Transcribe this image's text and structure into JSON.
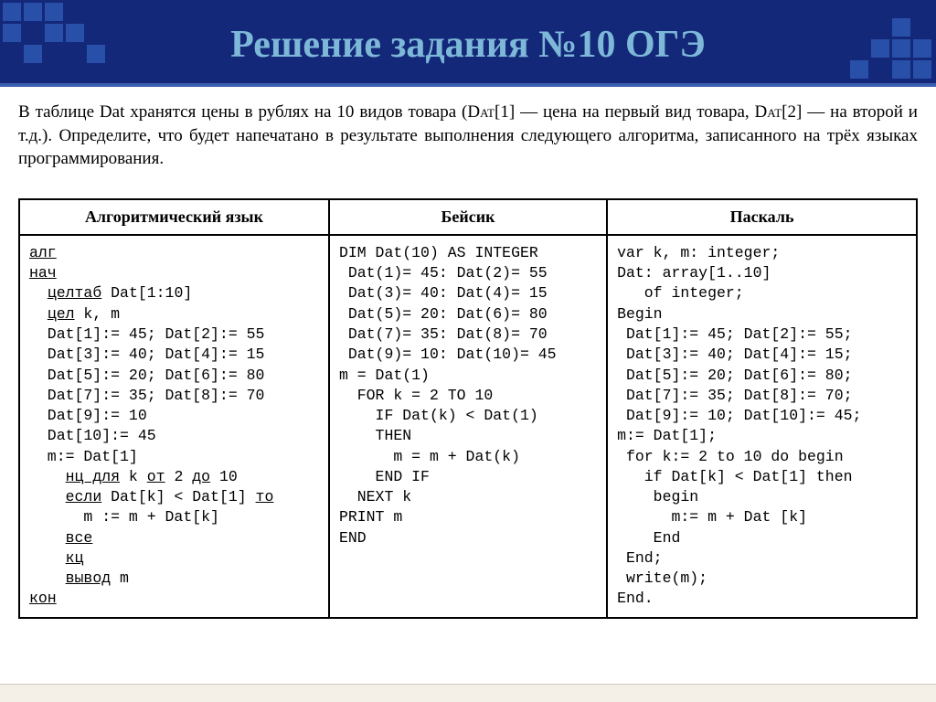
{
  "header": {
    "title": "Решение задания №10 ОГЭ",
    "bg_color": "#14287a",
    "title_color": "#7db8d8",
    "title_fontsize": 42,
    "square_color": "#2850a8",
    "border_color": "#3a5fb0"
  },
  "intro": {
    "text": "В таблице Dat хранятся цены в рублях на 10 видов товара (Dat[1] — цена на первый вид товара, Dat[2] — на второй и т.д.). Определите, что будет напечатано в результате выполнения следующего алгоритма, записанного на трёх языках программирования.",
    "fontsize": 19
  },
  "table": {
    "headers": [
      "Алгоритмический язык",
      "Бейсик",
      "Паскаль"
    ],
    "header_fontsize": 18,
    "code_fontsize": 16.5,
    "code_font": "Courier New",
    "border_color": "#000000",
    "columns": [
      {
        "lang": "algo",
        "lines": [
          {
            "t": "алг",
            "u": true,
            "indent": 0
          },
          {
            "t": "нач",
            "u": true,
            "indent": 0
          },
          {
            "t": "целтаб",
            "u": true,
            "indent": 1,
            "suffix": " Dat[1:10]"
          },
          {
            "t": "цел",
            "u": true,
            "indent": 1,
            "suffix": " k, m"
          },
          {
            "t": "Dat[1]:= 45; Dat[2]:= 55",
            "indent": 1
          },
          {
            "t": "Dat[3]:= 40; Dat[4]:= 15",
            "indent": 1
          },
          {
            "t": "Dat[5]:= 20; Dat[6]:= 80",
            "indent": 1
          },
          {
            "t": "Dat[7]:= 35; Dat[8]:= 70",
            "indent": 1
          },
          {
            "t": "Dat[9]:= 10",
            "indent": 1
          },
          {
            "t": "Dat[10]:= 45",
            "indent": 1
          },
          {
            "t": "m:= Dat[1]",
            "indent": 1
          },
          {
            "t": "нц для",
            "u": true,
            "indent": 2,
            "mid": " k ",
            "u2": "от",
            "mid2": " 2 ",
            "u3": "до",
            "suffix": " 10"
          },
          {
            "t": "если",
            "u": true,
            "indent": 2,
            "mid": " Dat[k] < Dat[1] ",
            "u2": "то"
          },
          {
            "t": "m := m + Dat[k]",
            "indent": 3
          },
          {
            "t": "все",
            "u": true,
            "indent": 2
          },
          {
            "t": "кц",
            "u": true,
            "indent": 2
          },
          {
            "t": "вывод",
            "u": true,
            "indent": 2,
            "suffix": " m"
          },
          {
            "t": "кон",
            "u": true,
            "indent": 0
          }
        ]
      },
      {
        "lang": "basic",
        "lines": [
          "DIM Dat(10) AS INTEGER",
          " Dat(1)= 45: Dat(2)= 55",
          " Dat(3)= 40: Dat(4)= 15",
          " Dat(5)= 20: Dat(6)= 80",
          " Dat(7)= 35: Dat(8)= 70",
          " Dat(9)= 10: Dat(10)= 45",
          "m = Dat(1)",
          "  FOR k = 2 TO 10",
          "    IF Dat(k) < Dat(1)",
          "    THEN",
          "      m = m + Dat(k)",
          "    END IF",
          "  NEXT k",
          "PRINT m",
          "END"
        ]
      },
      {
        "lang": "pascal",
        "lines": [
          "var k, m: integer;",
          "Dat: array[1..10]",
          "   of integer;",
          "Begin",
          " Dat[1]:= 45; Dat[2]:= 55;",
          " Dat[3]:= 40; Dat[4]:= 15;",
          " Dat[5]:= 20; Dat[6]:= 80;",
          " Dat[7]:= 35; Dat[8]:= 70;",
          " Dat[9]:= 10; Dat[10]:= 45;",
          "m:= Dat[1];",
          " for k:= 2 to 10 do begin",
          "   if Dat[k] < Dat[1] then",
          "    begin",
          "      m:= m + Dat [k]",
          "    End",
          " End;",
          " write(m);",
          "End."
        ]
      }
    ]
  },
  "squares": {
    "top_left_pattern": [
      [
        1,
        1,
        1,
        0,
        0
      ],
      [
        1,
        0,
        1,
        1,
        0
      ],
      [
        0,
        1,
        0,
        0,
        1
      ]
    ],
    "bottom_right_pattern": [
      [
        0,
        0,
        1,
        0
      ],
      [
        0,
        1,
        1,
        1
      ],
      [
        1,
        0,
        1,
        1
      ]
    ]
  }
}
